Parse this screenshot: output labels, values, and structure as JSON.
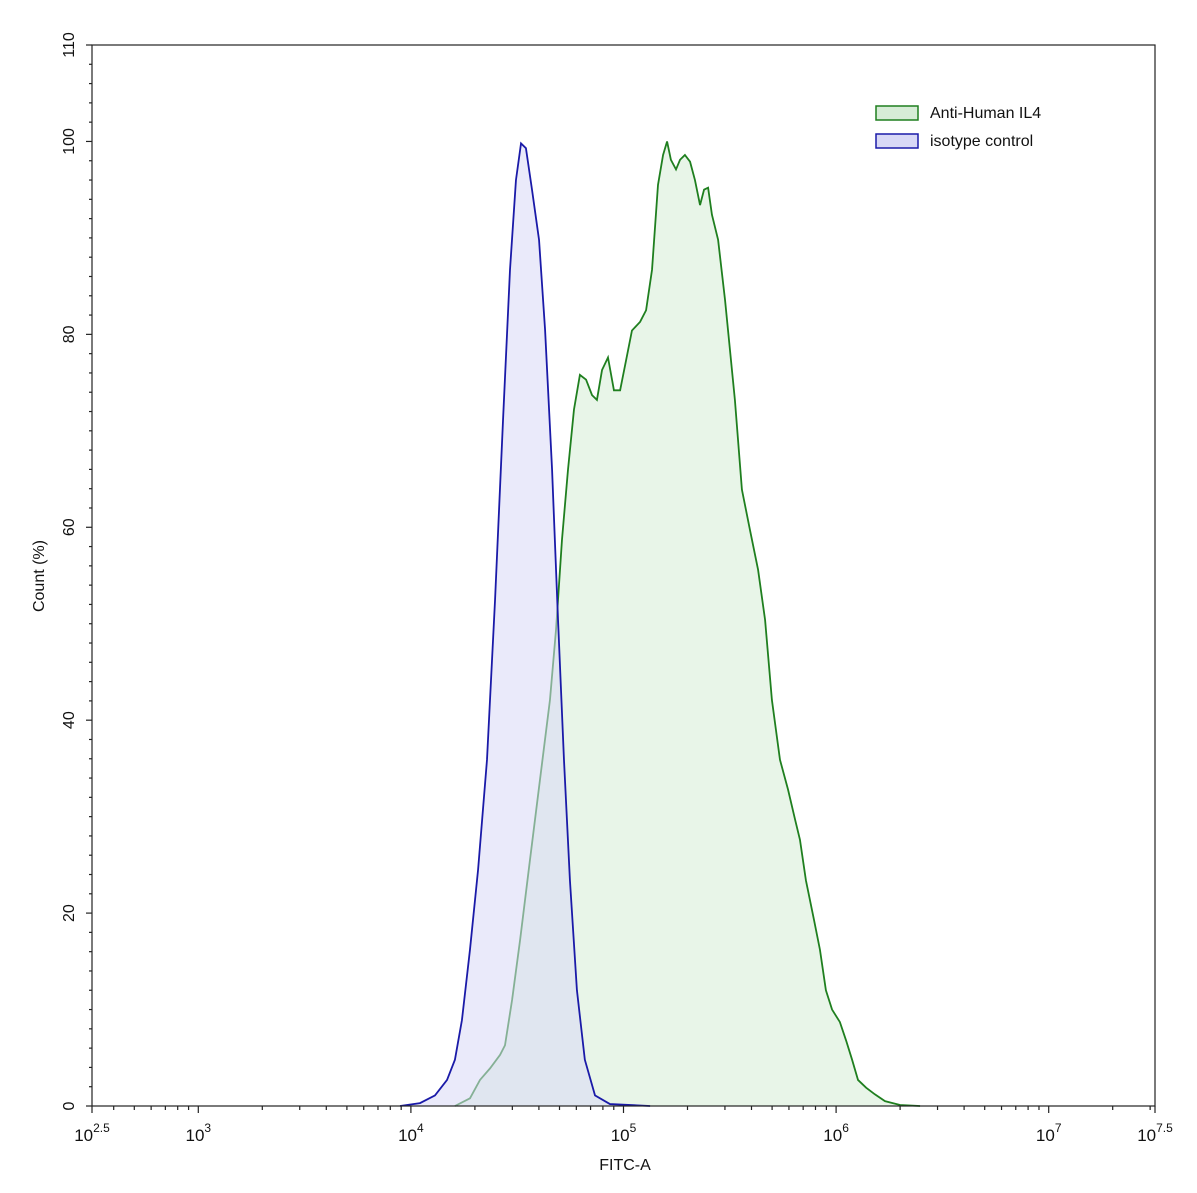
{
  "chart_data": {
    "type": "histogram-overlay",
    "x_label": "FITC-A",
    "y_label": "Count  (%)",
    "xscale": "log",
    "xlim": [
      316.228,
      31622776.6
    ],
    "xticks": [
      {
        "value": 316.228,
        "label": "10^2.5"
      },
      {
        "value": 1000,
        "label": "10^3"
      },
      {
        "value": 10000,
        "label": "10^4"
      },
      {
        "value": 100000,
        "label": "10^5"
      },
      {
        "value": 1000000,
        "label": "10^6"
      },
      {
        "value": 10000000,
        "label": "10^7"
      },
      {
        "value": 31622776.6,
        "label": "10^7.5"
      }
    ],
    "ylim": [
      0,
      110
    ],
    "yticks": [
      0,
      20,
      40,
      60,
      80,
      100,
      110
    ],
    "legend": "upper right",
    "series": [
      {
        "name": "Anti-Human IL4",
        "color": "#1f7f1f",
        "fill": "#d6ecd6",
        "x": [
          16110,
          18960,
          21130,
          23560,
          26260,
          27710,
          29920,
          32620,
          36310,
          40460,
          45090,
          48160,
          51360,
          54830,
          58480,
          62370,
          66680,
          71120,
          74990,
          79250,
          84540,
          90160,
          96390,
          102800,
          109600,
          119700,
          127700,
          136200,
          145300,
          153500,
          160300,
          167100,
          176600,
          184500,
          194500,
          205600,
          216800,
          229100,
          239300,
          250000,
          260600,
          278600,
          300200,
          334200,
          360600,
          393600,
          429500,
          463400,
          498900,
          544500,
          594300,
          641200,
          676100,
          721100,
          787000,
          839500,
          895400,
          957200,
          1042000,
          1114000,
          1189000,
          1268000,
          1384000,
          1524000,
          1698000,
          2000000,
          2483000
        ],
        "values": [
          0,
          0.8,
          2.7,
          3.9,
          5.3,
          6.3,
          11,
          17.2,
          25.5,
          33.8,
          42.1,
          49.4,
          58.7,
          66,
          72.2,
          75.8,
          75.3,
          73.7,
          73.2,
          76.3,
          77.6,
          74.2,
          74.2,
          77.3,
          80.4,
          81.3,
          82.5,
          86.7,
          95.5,
          98.6,
          100,
          98.1,
          97.1,
          98.1,
          98.6,
          97.9,
          96,
          93.4,
          95,
          95.2,
          92.4,
          89.8,
          83.6,
          73.2,
          63.9,
          59.7,
          55.6,
          50.4,
          42.1,
          35.9,
          32.8,
          29.7,
          27.6,
          23.4,
          19.3,
          16.2,
          12,
          10,
          8.7,
          6.8,
          4.8,
          2.7,
          1.9,
          1.2,
          0.5,
          0.1,
          0
        ]
      },
      {
        "name": "isotype control",
        "color": "#1a1aa8",
        "fill": "#d8d8f6",
        "x": [
          8890,
          11040,
          12980,
          14790,
          16110,
          17380,
          18960,
          20700,
          22800,
          24880,
          27120,
          29250,
          31200,
          32960,
          34760,
          37120,
          40060,
          42760,
          46130,
          49210,
          52480,
          55980,
          60390,
          65790,
          73450,
          86360,
          133400
        ],
        "values": [
          0,
          0.3,
          1.1,
          2.7,
          4.8,
          8.9,
          16.2,
          24.5,
          35.9,
          52.5,
          71.1,
          86.7,
          96,
          99.8,
          99.3,
          95,
          89.8,
          80.5,
          66,
          50.4,
          35.9,
          23.4,
          12,
          4.8,
          1.1,
          0.2,
          0
        ]
      }
    ]
  }
}
